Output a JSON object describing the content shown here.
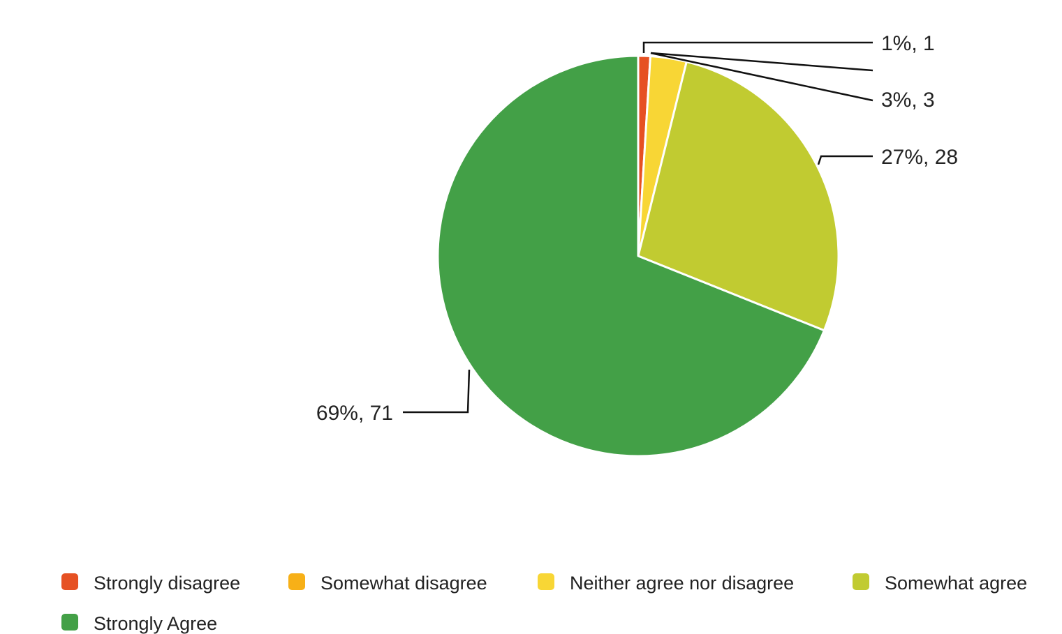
{
  "chart_data": {
    "type": "pie",
    "title": "",
    "unit_note": "",
    "slices": [
      {
        "label": "Strongly disagree",
        "value": 1,
        "percent": 1,
        "color": "#e65123",
        "data_label": "1%, 1"
      },
      {
        "label": "Somewhat disagree",
        "value": 0,
        "percent": 0,
        "color": "#f7b017",
        "data_label": ""
      },
      {
        "label": "Neither agree nor disagree",
        "value": 3,
        "percent": 3,
        "color": "#f8d635",
        "data_label": "3%, 3"
      },
      {
        "label": "Somewhat agree",
        "value": 28,
        "percent": 27,
        "color": "#c1cb31",
        "data_label": "27%, 28"
      },
      {
        "label": "Strongly Agree",
        "value": 71,
        "percent": 69,
        "color": "#43a047",
        "data_label": "69%, 71"
      }
    ],
    "legend_position": "bottom",
    "legend": [
      {
        "label": "Strongly disagree",
        "color": "#e65123"
      },
      {
        "label": "Somewhat disagree",
        "color": "#f7b017"
      },
      {
        "label": "Neither agree nor disagree",
        "color": "#f8d635"
      },
      {
        "label": "Somewhat agree",
        "color": "#c1cb31"
      },
      {
        "label": "Strongly Agree",
        "color": "#43a047"
      }
    ]
  }
}
